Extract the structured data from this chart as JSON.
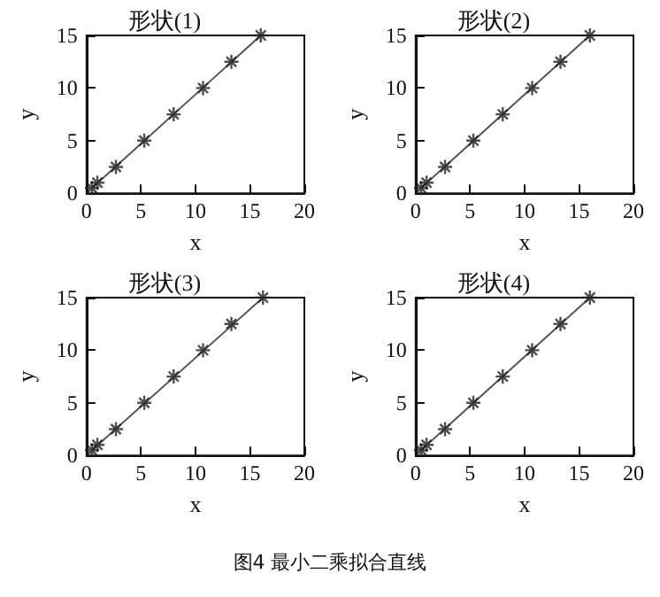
{
  "chart_data": [
    {
      "type": "scatter",
      "title": "形状(1)",
      "xlabel": "x",
      "ylabel": "y",
      "xlim": [
        0,
        20
      ],
      "xticks": [
        0,
        5,
        10,
        15,
        20
      ],
      "ylim": [
        0,
        15
      ],
      "yticks": [
        0,
        5,
        10,
        15
      ],
      "grid": false,
      "marker": "cross",
      "series": [
        {
          "color": "#222222",
          "x": [
            0.5,
            1,
            2.7,
            5.3,
            8,
            10.7,
            13.3,
            16
          ],
          "values": [
            0.5,
            1,
            2.5,
            5,
            7.5,
            10,
            12.5,
            15
          ]
        },
        {
          "type": "line",
          "color": "#555555",
          "marker": "none",
          "line_style": "solid",
          "x": [
            0.5,
            16
          ],
          "values": [
            0.5,
            15
          ]
        }
      ]
    },
    {
      "type": "scatter",
      "title": "形状(2)",
      "xlabel": "x",
      "ylabel": "y",
      "xlim": [
        0,
        20
      ],
      "xticks": [
        0,
        5,
        10,
        15,
        20
      ],
      "ylim": [
        0,
        15
      ],
      "yticks": [
        0,
        5,
        10,
        15
      ],
      "grid": false,
      "marker": "cross",
      "series": [
        {
          "color": "#222222",
          "x": [
            0.5,
            1,
            2.7,
            5.3,
            8,
            10.7,
            13.3,
            16
          ],
          "values": [
            0.5,
            1,
            2.5,
            5,
            7.5,
            10,
            12.5,
            15
          ]
        },
        {
          "type": "line",
          "color": "#555555",
          "marker": "none",
          "line_style": "solid",
          "x": [
            0.5,
            16
          ],
          "values": [
            0.5,
            15
          ]
        }
      ]
    },
    {
      "type": "scatter",
      "title": "形状(3)",
      "xlabel": "x",
      "ylabel": "y",
      "xlim": [
        0,
        20
      ],
      "xticks": [
        0,
        5,
        10,
        15,
        20
      ],
      "ylim": [
        0,
        15
      ],
      "yticks": [
        0,
        5,
        10,
        15
      ],
      "grid": false,
      "marker": "cross",
      "series": [
        {
          "color": "#222222",
          "x": [
            0.5,
            1,
            2.7,
            5.3,
            8,
            10.7,
            13.3,
            16.2
          ],
          "values": [
            0.5,
            1,
            2.5,
            5,
            7.5,
            10,
            12.5,
            15
          ]
        },
        {
          "type": "line",
          "color": "#555555",
          "marker": "none",
          "line_style": "solid",
          "x": [
            0.5,
            16.2
          ],
          "values": [
            0.5,
            15
          ]
        }
      ]
    },
    {
      "type": "scatter",
      "title": "形状(4)",
      "xlabel": "x",
      "ylabel": "y",
      "xlim": [
        0,
        20
      ],
      "xticks": [
        0,
        5,
        10,
        15,
        20
      ],
      "ylim": [
        0,
        15
      ],
      "yticks": [
        0,
        5,
        10,
        15
      ],
      "grid": false,
      "marker": "cross",
      "annotations": [
        "图4 最小二乘拟合直线"
      ],
      "series": [
        {
          "color": "#222222",
          "x": [
            0.5,
            1,
            2.7,
            5.3,
            8,
            10.7,
            13.3,
            16
          ],
          "values": [
            0.5,
            1,
            2.5,
            5,
            7.5,
            10,
            12.5,
            15
          ]
        },
        {
          "type": "line",
          "color": "#555555",
          "marker": "none",
          "line_style": "solid",
          "x": [
            0.5,
            16
          ],
          "values": [
            0.5,
            15
          ]
        }
      ]
    }
  ]
}
